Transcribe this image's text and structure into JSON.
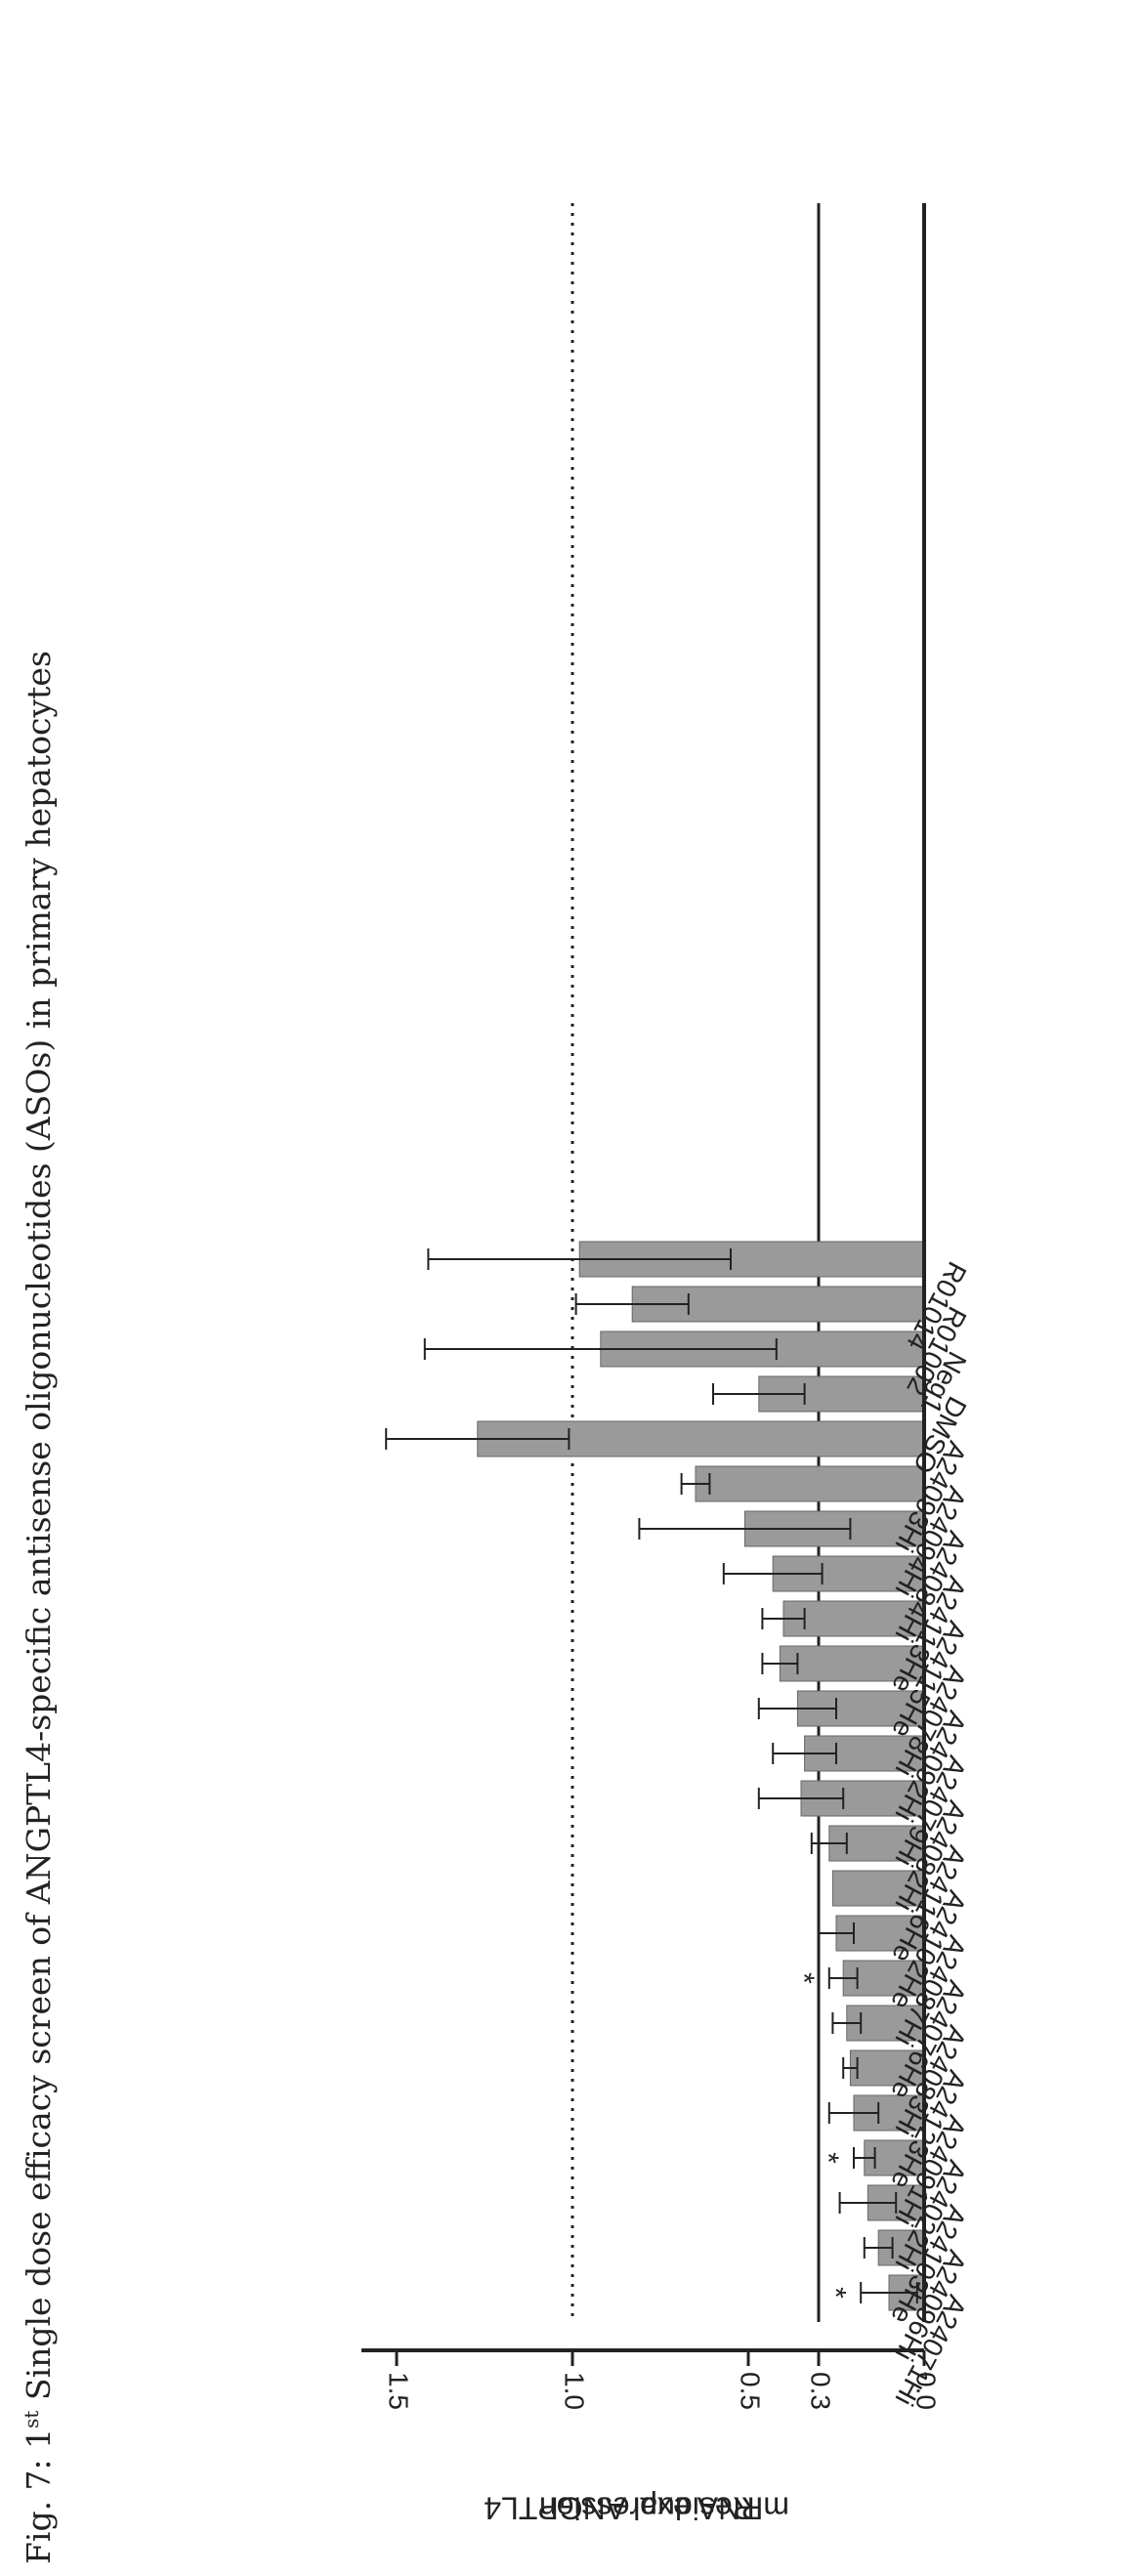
{
  "caption": {
    "fig": "Fig. 7: 1",
    "sup": "st",
    "rest": " Single dose efficacy screen of ANGPTL4-specific antisense oligonucleotides (ASOs) in primary hepatocytes"
  },
  "chart_data": {
    "type": "bar",
    "orientation": "rotated-90",
    "ylabel": [
      "Residual ANGPTL4",
      "mRNA expression"
    ],
    "ylim": [
      0,
      1.6
    ],
    "yticks": [
      "0.0",
      "0.3",
      "0.5",
      "1.0",
      "1.5"
    ],
    "reference_lines": [
      {
        "value": 1.0,
        "style": "dotted"
      },
      {
        "value": 0.3,
        "style": "solid"
      }
    ],
    "categories": [
      "A24071Hi",
      "A24096Hi",
      "A24103He",
      "A24022Hi",
      "A24091Hi",
      "A24123He",
      "A24083Hi",
      "A24076He",
      "A24087Hi",
      "A24102He",
      "A24116He",
      "A24082Hi",
      "A24079Hi",
      "A24092Hi",
      "A24078Hi",
      "A24115He",
      "A24113He",
      "A24084Hi",
      "A24094Hi",
      "A24093Hi",
      "DMSO",
      "Neg1",
      "R01002",
      "R01014"
    ],
    "values": [
      0.1,
      0.13,
      0.16,
      0.17,
      0.2,
      0.21,
      0.22,
      0.23,
      0.25,
      0.26,
      0.27,
      0.35,
      0.34,
      0.36,
      0.41,
      0.4,
      0.43,
      0.51,
      0.65,
      1.27,
      0.47,
      0.92,
      0.83,
      0.98
    ],
    "errors": [
      0.08,
      0.04,
      0.08,
      0.03,
      0.07,
      0.02,
      0.04,
      0.04,
      0.05,
      0.0,
      0.05,
      0.12,
      0.09,
      0.11,
      0.05,
      0.06,
      0.14,
      0.3,
      0.04,
      0.26,
      0.13,
      0.5,
      0.16,
      0.43
    ],
    "significance": [
      "*",
      "",
      "",
      "*",
      "",
      "",
      "",
      "*",
      "",
      "",
      "",
      "",
      "",
      "",
      "",
      "",
      "",
      "",
      "",
      "",
      "",
      "",
      "",
      ""
    ],
    "bar_color": "#9a9a9a"
  }
}
